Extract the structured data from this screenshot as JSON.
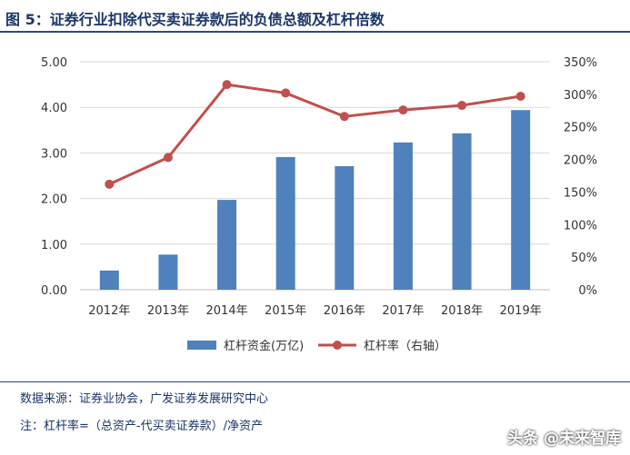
{
  "figure": {
    "title": "图 5：证券行业扣除代买卖证券款后的负债总额及杠杆倍数",
    "source": "数据来源：证券业协会，广发证券发展研究中心",
    "note": "注：杠杆率=（总资产-代买卖证券款）/净资产",
    "watermark": "头条 @未来智库"
  },
  "chart_data": {
    "type": "bar",
    "categories": [
      "2012年",
      "2013年",
      "2014年",
      "2015年",
      "2016年",
      "2017年",
      "2018年",
      "2019年"
    ],
    "series": [
      {
        "name": "杠杆资金(万亿)",
        "type": "bar",
        "axis": "left",
        "color": "#4f81bd",
        "values": [
          0.42,
          0.77,
          1.97,
          2.91,
          2.71,
          3.23,
          3.43,
          3.94
        ]
      },
      {
        "name": "杠杆率（右轴）",
        "type": "line",
        "axis": "right",
        "color": "#c0504d",
        "values": [
          1.62,
          2.03,
          3.15,
          3.02,
          2.66,
          2.76,
          2.83,
          2.97
        ]
      }
    ],
    "y_left": {
      "min": 0,
      "max": 5,
      "ticks": [
        0,
        1,
        2,
        3,
        4,
        5
      ],
      "tick_labels": [
        "0.00",
        "1.00",
        "2.00",
        "3.00",
        "4.00",
        "5.00"
      ]
    },
    "y_right": {
      "min": 0,
      "max": 3.5,
      "ticks": [
        0,
        0.5,
        1,
        1.5,
        2,
        2.5,
        3,
        3.5
      ],
      "tick_labels": [
        "0%",
        "50%",
        "100%",
        "150%",
        "200%",
        "250%",
        "300%",
        "350%"
      ]
    },
    "grid": true,
    "legend_position": "bottom"
  }
}
